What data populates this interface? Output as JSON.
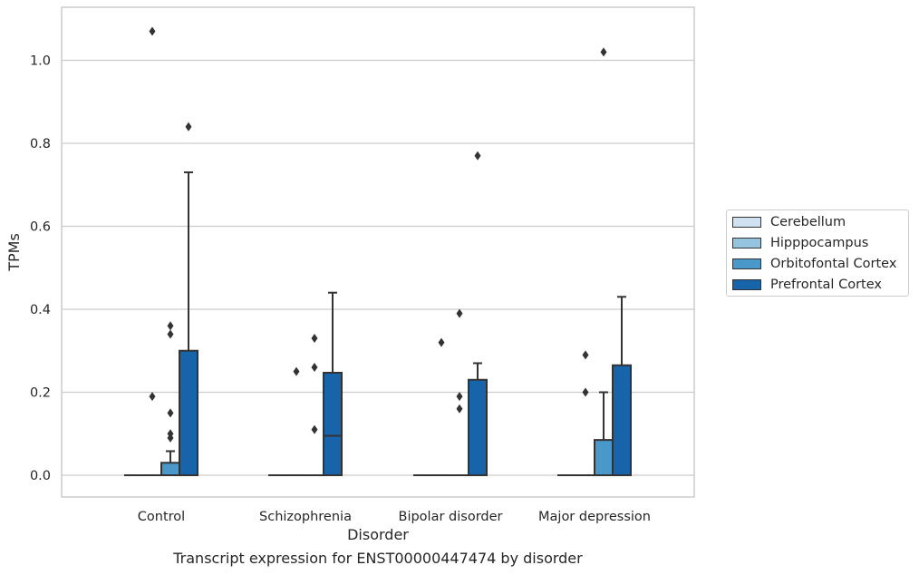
{
  "chart_data": {
    "type": "box",
    "xlabel": "Disorder",
    "ylabel": "TPMs",
    "caption": "Transcript expression for ENST00000447474 by disorder",
    "ylim": [
      -0.05,
      1.13
    ],
    "yticks": [
      0.0,
      0.2,
      0.4,
      0.6,
      0.8,
      1.0
    ],
    "ytick_labels": [
      "0.0",
      "0.2",
      "0.4",
      "0.6",
      "0.8",
      "1.0"
    ],
    "grid": "horizontal",
    "legend_position": "right",
    "categories": [
      "Control",
      "Schizophrenia",
      "Bipolar disorder",
      "Major depression"
    ],
    "series": [
      {
        "name": "Cerebellum",
        "color": "#d0e1f2",
        "boxes": [
          {
            "q1": 0,
            "median": 0,
            "q3": 0,
            "whisker_low": 0,
            "whisker_high": 0,
            "outliers": []
          },
          {
            "q1": 0,
            "median": 0,
            "q3": 0,
            "whisker_low": 0,
            "whisker_high": 0,
            "outliers": []
          },
          {
            "q1": 0,
            "median": 0,
            "q3": 0,
            "whisker_low": 0,
            "whisker_high": 0,
            "outliers": []
          },
          {
            "q1": 0,
            "median": 0,
            "q3": 0,
            "whisker_low": 0,
            "whisker_high": 0,
            "outliers": []
          }
        ]
      },
      {
        "name": "Hipppocampus",
        "color": "#94c4df",
        "boxes": [
          {
            "q1": 0,
            "median": 0,
            "q3": 0,
            "whisker_low": 0,
            "whisker_high": 0,
            "outliers": [
              1.07,
              0.19
            ]
          },
          {
            "q1": 0,
            "median": 0,
            "q3": 0,
            "whisker_low": 0,
            "whisker_high": 0,
            "outliers": [
              0.25
            ]
          },
          {
            "q1": 0,
            "median": 0,
            "q3": 0,
            "whisker_low": 0,
            "whisker_high": 0,
            "outliers": [
              0.32
            ]
          },
          {
            "q1": 0,
            "median": 0,
            "q3": 0,
            "whisker_low": 0,
            "whisker_high": 0,
            "outliers": [
              0.29,
              0.2
            ]
          }
        ]
      },
      {
        "name": "Orbitofontal Cortex",
        "color": "#4a98c9",
        "boxes": [
          {
            "q1": 0,
            "median": 0,
            "q3": 0.03,
            "whisker_low": 0,
            "whisker_high": 0.058,
            "outliers": [
              0.36,
              0.34,
              0.15,
              0.1,
              0.09
            ]
          },
          {
            "q1": 0,
            "median": 0,
            "q3": 0,
            "whisker_low": 0,
            "whisker_high": 0,
            "outliers": [
              0.33,
              0.26,
              0.11
            ]
          },
          {
            "q1": 0,
            "median": 0,
            "q3": 0,
            "whisker_low": 0,
            "whisker_high": 0,
            "outliers": [
              0.39,
              0.19,
              0.16
            ]
          },
          {
            "q1": 0,
            "median": 0,
            "q3": 0.085,
            "whisker_low": 0,
            "whisker_high": 0.2,
            "outliers": [
              1.02
            ]
          }
        ]
      },
      {
        "name": "Prefrontal Cortex",
        "color": "#1764ab",
        "boxes": [
          {
            "q1": 0,
            "median": 0,
            "q3": 0.3,
            "whisker_low": 0,
            "whisker_high": 0.73,
            "outliers": [
              0.84
            ]
          },
          {
            "q1": 0,
            "median": 0.095,
            "q3": 0.247,
            "whisker_low": 0,
            "whisker_high": 0.44,
            "outliers": []
          },
          {
            "q1": 0,
            "median": 0,
            "q3": 0.23,
            "whisker_low": 0,
            "whisker_high": 0.27,
            "outliers": [
              0.77
            ]
          },
          {
            "q1": 0,
            "median": 0,
            "q3": 0.265,
            "whisker_low": 0,
            "whisker_high": 0.43,
            "outliers": []
          }
        ]
      }
    ]
  },
  "legend": {
    "items": [
      {
        "label": "Cerebellum",
        "color": "#d0e1f2"
      },
      {
        "label": "Hipppocampus",
        "color": "#94c4df"
      },
      {
        "label": "Orbitofontal Cortex",
        "color": "#4a98c9"
      },
      {
        "label": "Prefrontal Cortex",
        "color": "#1764ab"
      }
    ]
  }
}
